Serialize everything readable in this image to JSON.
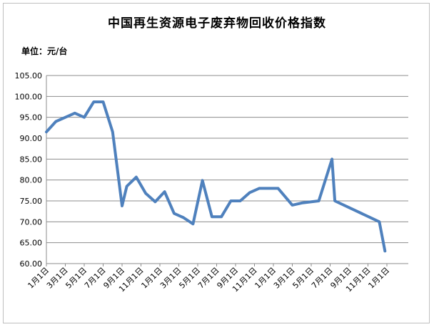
{
  "chart_data": {
    "type": "line",
    "title": "中国再生资源电子废弃物回收价格指数",
    "unit_label": "单位：元/台",
    "ylim": [
      60,
      105
    ],
    "y_ticks": [
      "60.00",
      "65.00",
      "70.00",
      "75.00",
      "80.00",
      "85.00",
      "90.00",
      "95.00",
      "100.00",
      "105.00"
    ],
    "x_tick_labels": [
      "1月1日",
      "3月1日",
      "5月1日",
      "7月1日",
      "9月1日",
      "11月1日",
      "1月1日",
      "3月1日",
      "5月1日",
      "7月1日",
      "9月1日",
      "11月1日",
      "1月1日",
      "3月1日",
      "5月1日",
      "7月1日",
      "9月1日",
      "11月1日",
      "1月1日"
    ],
    "grid": "horizontal",
    "line_color": "#4f81bd",
    "series": [
      {
        "x": [
          0,
          0.5,
          1,
          1.5,
          2,
          2.5,
          3,
          3.5,
          4,
          4.25,
          4.75,
          5.25,
          5.75,
          6.25,
          6.75,
          7.25,
          7.75,
          8.25,
          8.75,
          9.25,
          9.75,
          10.25,
          10.75,
          11.25,
          11.75,
          12.25,
          13,
          13.5,
          14.4,
          15.1,
          15.25,
          17.6,
          17.9
        ],
        "y": [
          91.5,
          94,
          95,
          96,
          95,
          98.7,
          98.7,
          91.5,
          73.8,
          78.5,
          80.7,
          76.8,
          74.8,
          77.2,
          72,
          71,
          69.5,
          79.9,
          71.2,
          71.2,
          75,
          75,
          77,
          78,
          78,
          78,
          74,
          74.5,
          75,
          85,
          75,
          70,
          63
        ]
      }
    ]
  }
}
